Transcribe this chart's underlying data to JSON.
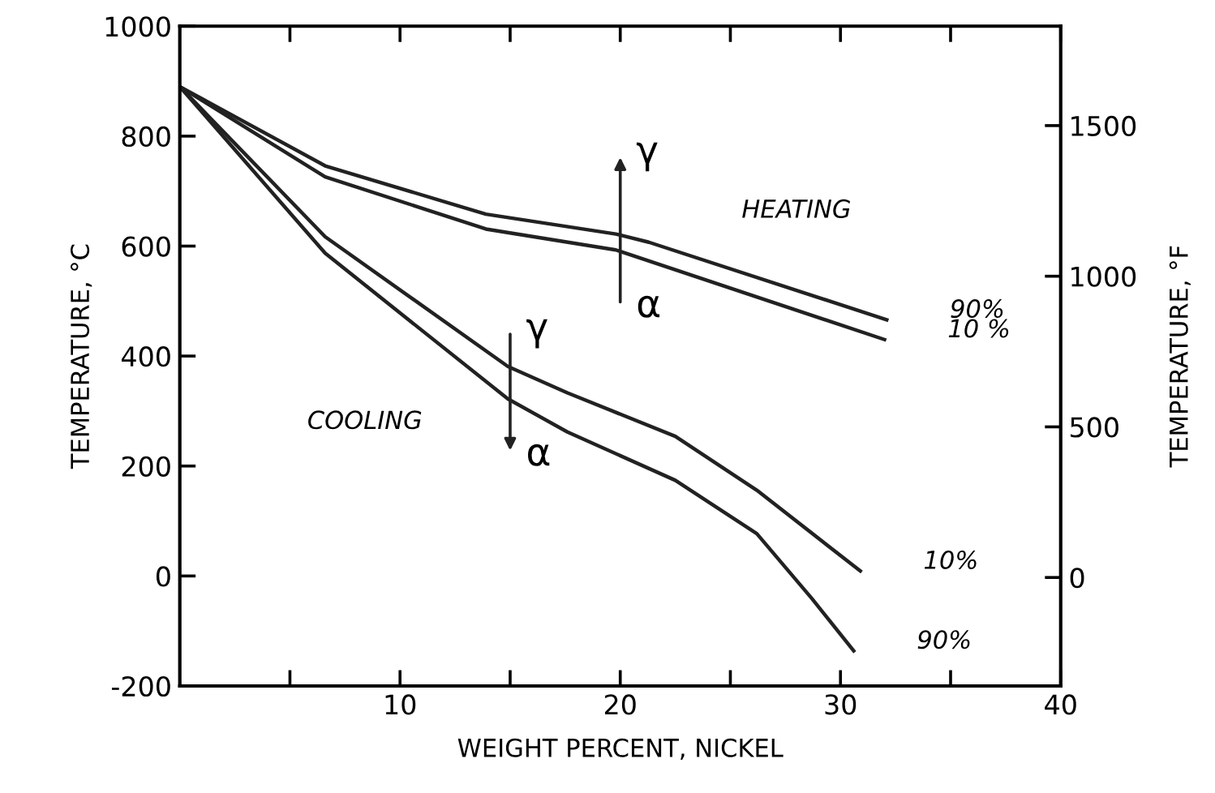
{
  "chart_data": {
    "type": "line",
    "xlabel": "WEIGHT PERCENT, NICKEL",
    "ylabel": "TEMPERATURE, °C",
    "y2label": "TEMPERATURE, °F",
    "xlim": [
      0,
      40
    ],
    "xticks": [
      {
        "value": 5,
        "label": null
      },
      10,
      {
        "value": 15,
        "label": null
      },
      20,
      {
        "value": 25,
        "label": null
      },
      30,
      {
        "value": 35,
        "label": null
      },
      40
    ],
    "ylim": [
      -200,
      1000
    ],
    "yticks": [
      -200,
      0,
      200,
      400,
      600,
      800,
      1000
    ],
    "y2lim": [
      -360,
      1830
    ],
    "y2ticks": [
      0,
      500,
      1000,
      1500
    ],
    "grid": false,
    "legend": false,
    "marker": "none",
    "line_style": "solid",
    "series": [
      {
        "name": "90%",
        "color": "#222222",
        "x": [
          0,
          6.6,
          13.9,
          19.8,
          21.3,
          32.1
        ],
        "values": [
          890,
          746,
          658,
          622,
          607,
          466
        ]
      },
      {
        "name": "10 %",
        "color": "#222222",
        "x": [
          0,
          6.6,
          13.9,
          19.8,
          32.0
        ],
        "values": [
          890,
          726,
          631,
          593,
          430
        ]
      },
      {
        "name": "10%",
        "color": "#222222",
        "x": [
          0,
          6.6,
          14.9,
          17.6,
          22.5,
          26.2,
          30.9
        ],
        "values": [
          890,
          617,
          381,
          333,
          254,
          156,
          9
        ]
      },
      {
        "name": "90%",
        "color": "#222222",
        "x": [
          0,
          6.6,
          14.9,
          17.6,
          22.5,
          26.2,
          28.7,
          30.6
        ],
        "values": [
          890,
          587,
          322,
          262,
          174,
          77,
          -41,
          -136
        ]
      }
    ],
    "annotations": [
      "HEATING",
      "COOLING",
      "α",
      "γ",
      "γ",
      "α"
    ]
  }
}
